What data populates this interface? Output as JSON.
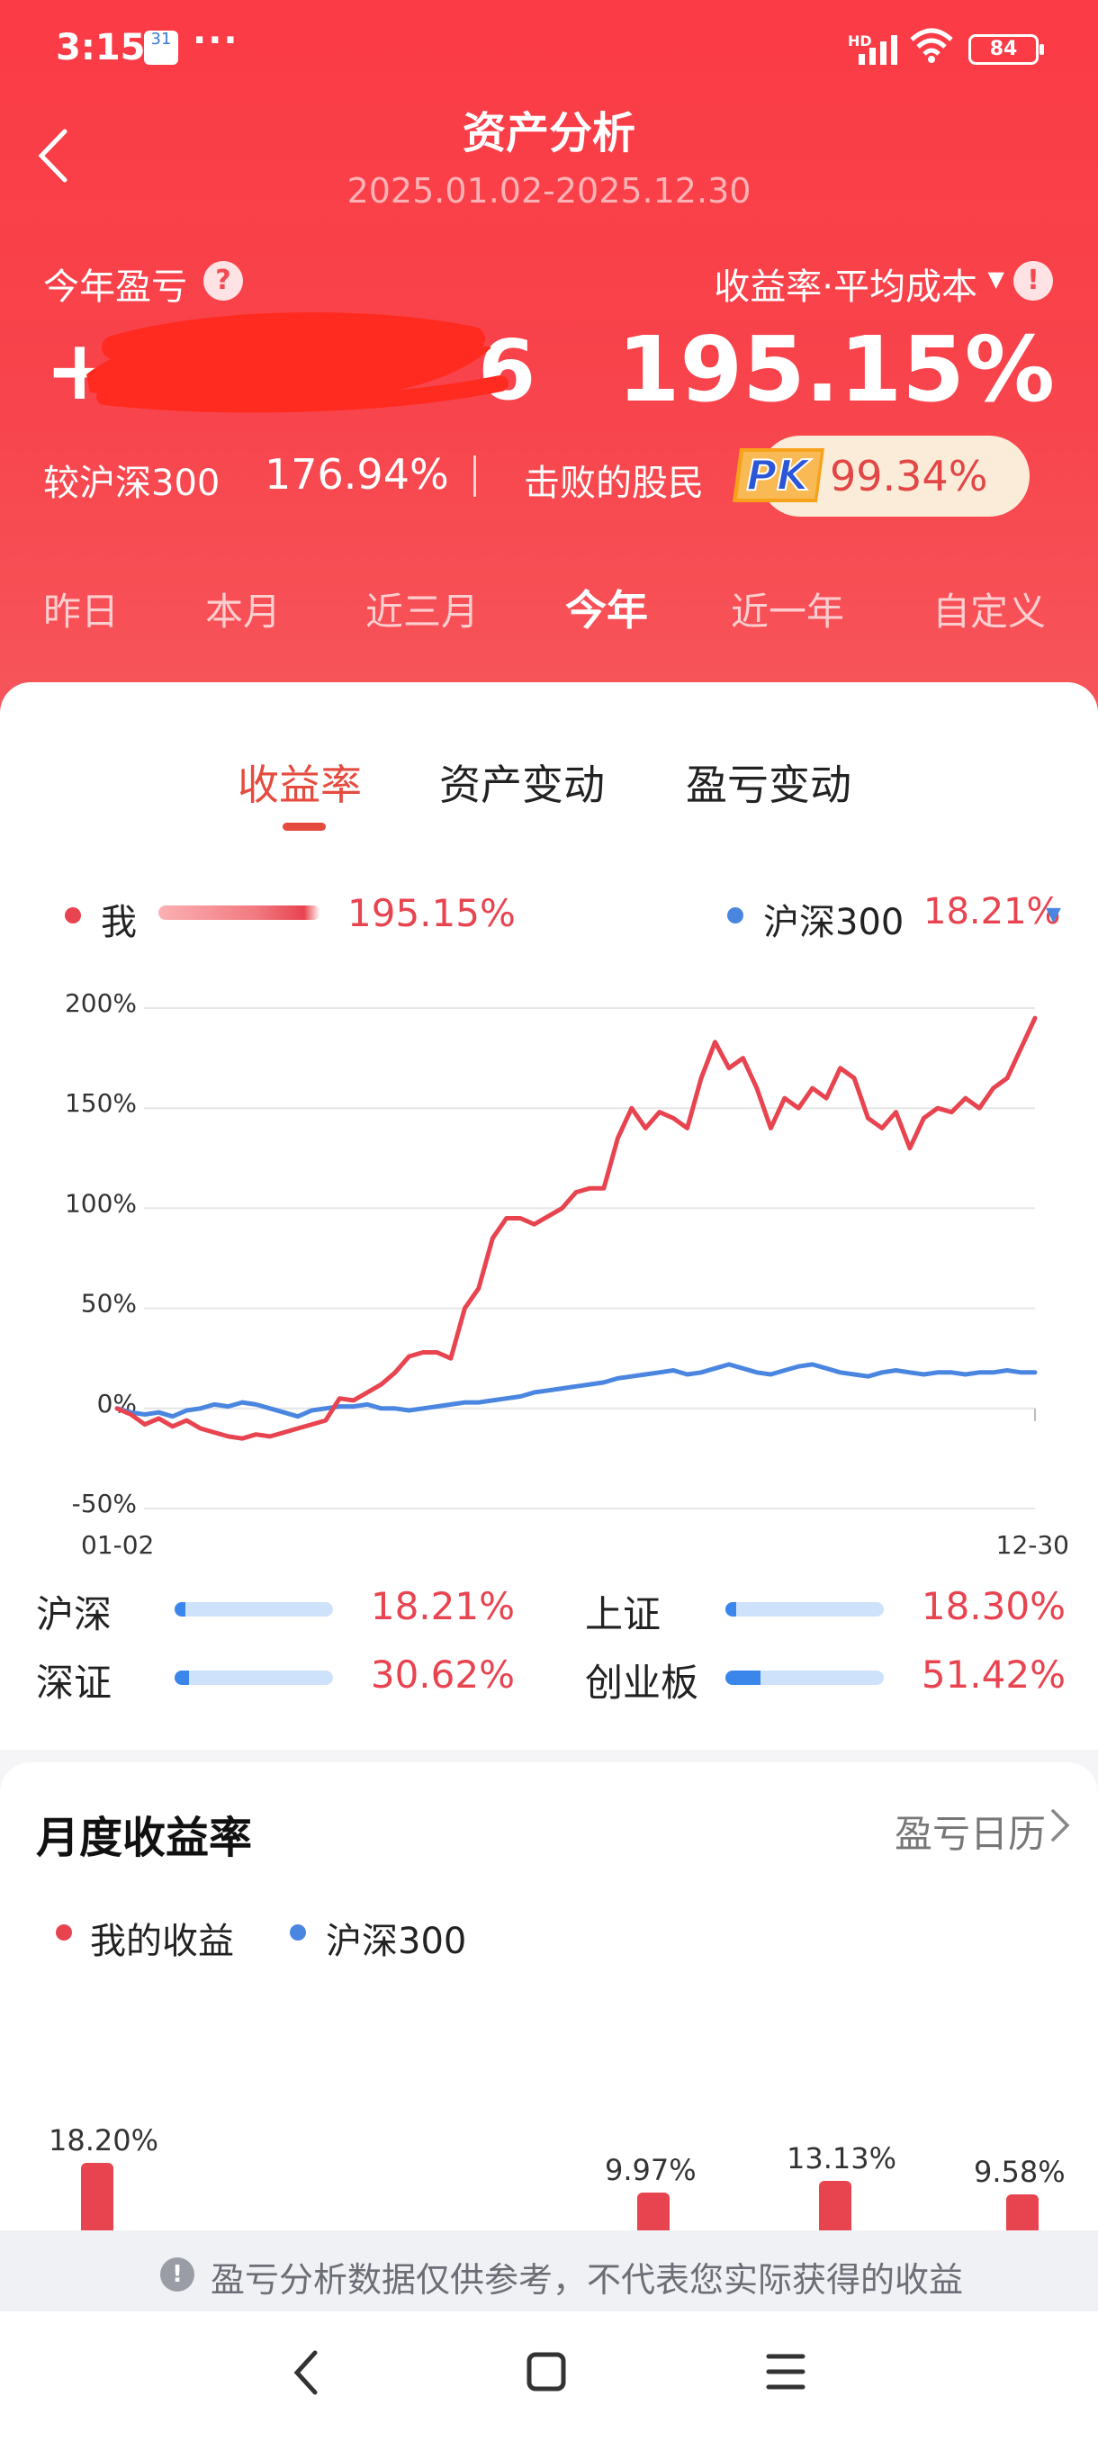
{
  "status": {
    "time": "3:15",
    "calendar_badge": "31",
    "more": "···",
    "network": "HD",
    "battery": "84"
  },
  "header": {
    "title": "资产分析",
    "date_range": "2025.01.02-2025.12.30",
    "ytd_label": "今年盈亏",
    "help_icon": "question-icon",
    "rate_method": "收益率·平均成本",
    "pl_value_visible": "+2",
    "pl_value_tail": "6",
    "return_rate": "195.15%",
    "vs_index_label": "较沪深300",
    "vs_index_value": "176.94%",
    "beat_label": "击败的股民",
    "pk_text": "PK",
    "beat_value": "99.34%"
  },
  "periods": [
    {
      "label": "昨日",
      "active": false
    },
    {
      "label": "本月",
      "active": false
    },
    {
      "label": "近三月",
      "active": false
    },
    {
      "label": "今年",
      "active": true
    },
    {
      "label": "近一年",
      "active": false
    },
    {
      "label": "自定义",
      "active": false
    }
  ],
  "tabs": [
    {
      "label": "收益率",
      "active": true
    },
    {
      "label": "资产变动",
      "active": false
    },
    {
      "label": "盈亏变动",
      "active": false
    }
  ],
  "legend": {
    "me_label": "我",
    "me_value": "195.15%",
    "me_color": "#e84450",
    "index_label": "沪深300",
    "index_value": "18.21%",
    "index_color": "#4a86e0"
  },
  "chart_data": {
    "type": "line",
    "x_start": "01-02",
    "x_end": "12-30",
    "y_ticks": [
      "200%",
      "150%",
      "100%",
      "50%",
      "0%",
      "-50%"
    ],
    "ylim": [
      -50,
      200
    ],
    "series": [
      {
        "name": "我",
        "color": "#e84450",
        "values": [
          0,
          -3,
          -8,
          -5,
          -9,
          -6,
          -10,
          -12,
          -14,
          -15,
          -13,
          -14,
          -12,
          -10,
          -8,
          -6,
          5,
          4,
          8,
          12,
          18,
          26,
          28,
          28,
          25,
          50,
          60,
          85,
          95,
          95,
          92,
          96,
          100,
          108,
          110,
          110,
          135,
          150,
          140,
          148,
          145,
          140,
          165,
          183,
          170,
          175,
          160,
          140,
          155,
          150,
          160,
          155,
          170,
          165,
          145,
          140,
          148,
          130,
          145,
          150,
          148,
          155,
          150,
          160,
          165,
          180,
          195
        ],
        "end_value": 195.15
      },
      {
        "name": "沪深300",
        "color": "#4a86e0",
        "values": [
          0,
          -2,
          -3,
          -2,
          -4,
          -1,
          0,
          2,
          1,
          3,
          2,
          0,
          -2,
          -4,
          -1,
          0,
          1,
          1,
          2,
          0,
          0,
          -1,
          0,
          1,
          2,
          3,
          3,
          4,
          5,
          6,
          8,
          9,
          10,
          11,
          12,
          13,
          15,
          16,
          17,
          18,
          19,
          17,
          18,
          20,
          22,
          20,
          18,
          17,
          19,
          21,
          22,
          20,
          18,
          17,
          16,
          18,
          19,
          18,
          17,
          18,
          18,
          17,
          18,
          18,
          19,
          18,
          18
        ],
        "end_value": 18.21
      }
    ]
  },
  "indices": [
    {
      "name": "沪深",
      "value": "18.21%",
      "fill": 0.07
    },
    {
      "name": "上证",
      "value": "18.30%",
      "fill": 0.07
    },
    {
      "name": "深证",
      "value": "30.62%",
      "fill": 0.09
    },
    {
      "name": "创业板",
      "value": "51.42%",
      "fill": 0.22
    }
  ],
  "monthly": {
    "title": "月度收益率",
    "calendar_link": "盈亏日历",
    "legend_me": "我的收益",
    "legend_index": "沪深300",
    "bars": [
      {
        "label": "18.20%",
        "value": 18.2
      },
      {
        "label": "9.97%",
        "value": 9.97
      },
      {
        "label": "13.13%",
        "value": 13.13
      },
      {
        "label": "9.58%",
        "value": 9.58
      }
    ]
  },
  "notice": {
    "text": "盈亏分析数据仅供参考，不代表您实际获得的收益"
  }
}
